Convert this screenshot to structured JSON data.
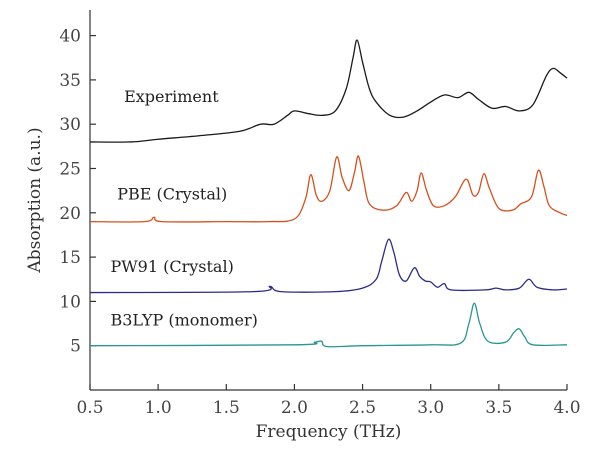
{
  "chart_data": {
    "type": "line",
    "xlabel": "Frequency (THz)",
    "ylabel": "Absorption (a.u.)",
    "xlim": [
      0.5,
      4.0
    ],
    "ylim": [
      0,
      42
    ],
    "xticks": [
      "0.5",
      "1.0",
      "1.5",
      "2.0",
      "2.5",
      "3.0",
      "3.5",
      "4.0"
    ],
    "yticks": [
      "5",
      "10",
      "15",
      "20",
      "25",
      "30",
      "35",
      "40"
    ],
    "grid": false,
    "series": [
      {
        "name": "Experiment",
        "color": "#1a1a1a",
        "label_at": [
          0.75,
          32.5
        ],
        "points": [
          [
            0.5,
            28.0
          ],
          [
            0.8,
            28.0
          ],
          [
            1.0,
            28.3
          ],
          [
            1.3,
            28.7
          ],
          [
            1.6,
            29.2
          ],
          [
            1.75,
            30.0
          ],
          [
            1.85,
            30.0
          ],
          [
            1.95,
            31.0
          ],
          [
            2.0,
            31.5
          ],
          [
            2.1,
            31.2
          ],
          [
            2.2,
            31.0
          ],
          [
            2.3,
            31.5
          ],
          [
            2.38,
            34.0
          ],
          [
            2.43,
            37.5
          ],
          [
            2.46,
            39.5
          ],
          [
            2.5,
            37.0
          ],
          [
            2.55,
            34.0
          ],
          [
            2.6,
            32.5
          ],
          [
            2.7,
            31.0
          ],
          [
            2.8,
            30.8
          ],
          [
            2.9,
            31.5
          ],
          [
            3.0,
            32.5
          ],
          [
            3.1,
            33.3
          ],
          [
            3.2,
            33.0
          ],
          [
            3.28,
            33.6
          ],
          [
            3.35,
            32.8
          ],
          [
            3.45,
            31.8
          ],
          [
            3.55,
            32.0
          ],
          [
            3.65,
            31.5
          ],
          [
            3.75,
            32.2
          ],
          [
            3.85,
            35.5
          ],
          [
            3.9,
            36.3
          ],
          [
            3.95,
            35.8
          ],
          [
            4.0,
            35.2
          ]
        ]
      },
      {
        "name": "PBE (Crystal)",
        "color": "#d6501e",
        "label_at": [
          0.7,
          21.5
        ],
        "points": [
          [
            0.5,
            19.0
          ],
          [
            0.9,
            19.0
          ],
          [
            0.97,
            19.5
          ],
          [
            1.03,
            19.0
          ],
          [
            1.5,
            19.0
          ],
          [
            1.8,
            19.0
          ],
          [
            2.0,
            19.3
          ],
          [
            2.08,
            21.5
          ],
          [
            2.12,
            24.3
          ],
          [
            2.16,
            22.0
          ],
          [
            2.2,
            21.3
          ],
          [
            2.26,
            22.5
          ],
          [
            2.31,
            26.3
          ],
          [
            2.35,
            24.0
          ],
          [
            2.4,
            22.5
          ],
          [
            2.44,
            24.5
          ],
          [
            2.47,
            26.4
          ],
          [
            2.51,
            23.5
          ],
          [
            2.55,
            21.0
          ],
          [
            2.65,
            20.3
          ],
          [
            2.75,
            20.8
          ],
          [
            2.82,
            22.3
          ],
          [
            2.86,
            21.3
          ],
          [
            2.9,
            22.5
          ],
          [
            2.93,
            24.5
          ],
          [
            2.97,
            22.5
          ],
          [
            3.02,
            20.8
          ],
          [
            3.1,
            20.8
          ],
          [
            3.18,
            21.8
          ],
          [
            3.26,
            23.8
          ],
          [
            3.31,
            22.0
          ],
          [
            3.35,
            22.3
          ],
          [
            3.39,
            24.4
          ],
          [
            3.43,
            22.8
          ],
          [
            3.5,
            20.5
          ],
          [
            3.6,
            20.3
          ],
          [
            3.66,
            21.0
          ],
          [
            3.74,
            21.8
          ],
          [
            3.79,
            24.8
          ],
          [
            3.83,
            23.0
          ],
          [
            3.87,
            20.8
          ],
          [
            3.95,
            20.0
          ],
          [
            4.0,
            19.7
          ]
        ]
      },
      {
        "name": "PW91 (Crystal)",
        "color": "#2b2b8c",
        "label_at": [
          0.65,
          13.3
        ],
        "points": [
          [
            0.5,
            11.0
          ],
          [
            1.7,
            11.1
          ],
          [
            1.82,
            11.7
          ],
          [
            1.9,
            11.1
          ],
          [
            2.3,
            11.1
          ],
          [
            2.5,
            11.5
          ],
          [
            2.6,
            12.5
          ],
          [
            2.64,
            14.5
          ],
          [
            2.69,
            17.0
          ],
          [
            2.73,
            15.5
          ],
          [
            2.77,
            13.0
          ],
          [
            2.82,
            12.3
          ],
          [
            2.88,
            13.8
          ],
          [
            2.92,
            12.8
          ],
          [
            2.96,
            12.3
          ],
          [
            3.0,
            12.2
          ],
          [
            3.05,
            11.6
          ],
          [
            3.1,
            12.0
          ],
          [
            3.15,
            11.3
          ],
          [
            3.4,
            11.3
          ],
          [
            3.48,
            11.5
          ],
          [
            3.55,
            11.3
          ],
          [
            3.65,
            11.5
          ],
          [
            3.72,
            12.5
          ],
          [
            3.78,
            11.6
          ],
          [
            3.9,
            11.3
          ],
          [
            4.0,
            11.4
          ]
        ]
      },
      {
        "name": "B3LYP (monomer)",
        "color": "#2a9595",
        "label_at": [
          0.65,
          7.3
        ],
        "points": [
          [
            0.5,
            5.0
          ],
          [
            2.0,
            5.1
          ],
          [
            2.15,
            5.4
          ],
          [
            2.2,
            5.5
          ],
          [
            2.24,
            4.9
          ],
          [
            2.5,
            5.0
          ],
          [
            3.0,
            5.1
          ],
          [
            3.22,
            5.3
          ],
          [
            3.28,
            7.5
          ],
          [
            3.32,
            9.8
          ],
          [
            3.36,
            7.5
          ],
          [
            3.42,
            5.5
          ],
          [
            3.55,
            5.4
          ],
          [
            3.61,
            6.5
          ],
          [
            3.65,
            6.9
          ],
          [
            3.69,
            6.0
          ],
          [
            3.75,
            5.1
          ],
          [
            4.0,
            5.1
          ]
        ]
      }
    ]
  }
}
